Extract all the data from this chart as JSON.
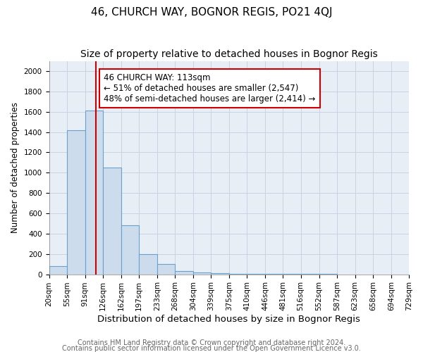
{
  "title": "46, CHURCH WAY, BOGNOR REGIS, PO21 4QJ",
  "subtitle": "Size of property relative to detached houses in Bognor Regis",
  "xlabel": "Distribution of detached houses by size in Bognor Regis",
  "ylabel": "Number of detached properties",
  "bin_edges": [
    20,
    55,
    91,
    126,
    162,
    197,
    233,
    268,
    304,
    339,
    375,
    410,
    446,
    481,
    516,
    552,
    587,
    623,
    658,
    694,
    729
  ],
  "bar_heights": [
    80,
    1420,
    1610,
    1050,
    480,
    200,
    100,
    35,
    20,
    10,
    5,
    3,
    2,
    1,
    1,
    1,
    0,
    0,
    0,
    0
  ],
  "bar_color": "#cddcec",
  "bar_edge_color": "#6aa0cc",
  "vline_x": 113,
  "vline_color": "#cc0000",
  "ylim": [
    0,
    2100
  ],
  "yticks": [
    0,
    200,
    400,
    600,
    800,
    1000,
    1200,
    1400,
    1600,
    1800,
    2000
  ],
  "annotation_text": "46 CHURCH WAY: 113sqm\n← 51% of detached houses are smaller (2,547)\n48% of semi-detached houses are larger (2,414) →",
  "annotation_box_facecolor": "#ffffff",
  "annotation_box_edgecolor": "#cc0000",
  "grid_color": "#c8d4e4",
  "bg_color": "#e8eef6",
  "footer_line1": "Contains HM Land Registry data © Crown copyright and database right 2024.",
  "footer_line2": "Contains public sector information licensed under the Open Government Licence v3.0.",
  "title_fontsize": 11,
  "subtitle_fontsize": 10,
  "xlabel_fontsize": 9.5,
  "ylabel_fontsize": 8.5,
  "tick_fontsize": 7.5,
  "annotation_fontsize": 8.5,
  "footer_fontsize": 7
}
